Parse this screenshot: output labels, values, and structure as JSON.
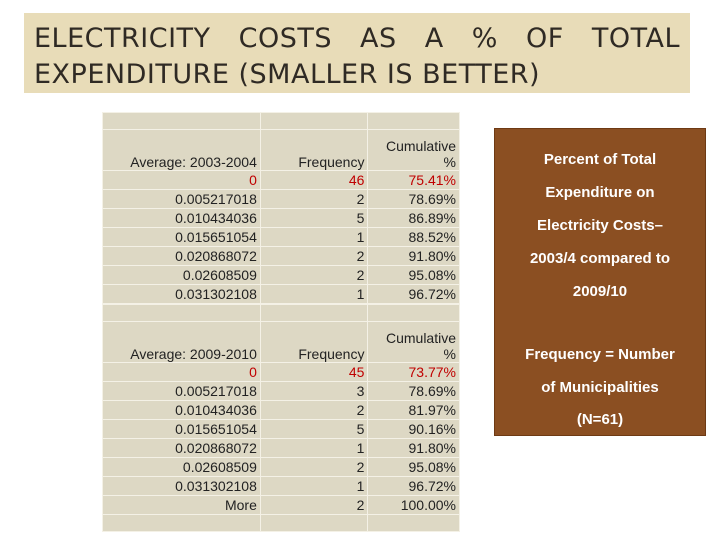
{
  "title": {
    "words_line1": [
      "ELECTRICITY",
      "COSTS",
      "AS",
      "A",
      "%",
      "OF",
      "TOTAL"
    ],
    "line2": "EXPENDITURE (SMALLER IS BETTER)"
  },
  "table1": {
    "label": "Average: 2003-2004",
    "freq_header": "Frequency",
    "cum_header_1": "Cumulative",
    "cum_header_2": "%",
    "rows": [
      {
        "bin": "0",
        "freq": "46",
        "cum": "75.41%"
      },
      {
        "bin": "0.005217018",
        "freq": "2",
        "cum": "78.69%"
      },
      {
        "bin": "0.010434036",
        "freq": "5",
        "cum": "86.89%"
      },
      {
        "bin": "0.015651054",
        "freq": "1",
        "cum": "88.52%"
      },
      {
        "bin": "0.020868072",
        "freq": "2",
        "cum": "91.80%"
      },
      {
        "bin": "0.02608509",
        "freq": "2",
        "cum": "95.08%"
      },
      {
        "bin": "0.031302108",
        "freq": "1",
        "cum": "96.72%"
      },
      {
        "bin": "More",
        "freq": "2",
        "cum": "100.00%"
      }
    ]
  },
  "table2": {
    "label": "Average:  2009-2010",
    "freq_header": "Frequency",
    "cum_header_1": "Cumulative",
    "cum_header_2": "%",
    "rows": [
      {
        "bin": "0",
        "freq": "45",
        "cum": "73.77%"
      },
      {
        "bin": "0.005217018",
        "freq": "3",
        "cum": "78.69%"
      },
      {
        "bin": "0.010434036",
        "freq": "2",
        "cum": "81.97%"
      },
      {
        "bin": "0.015651054",
        "freq": "5",
        "cum": "90.16%"
      },
      {
        "bin": "0.020868072",
        "freq": "1",
        "cum": "91.80%"
      },
      {
        "bin": "0.02608509",
        "freq": "2",
        "cum": "95.08%"
      },
      {
        "bin": "0.031302108",
        "freq": "1",
        "cum": "96.72%"
      },
      {
        "bin": "More",
        "freq": "2",
        "cum": "100.00%"
      }
    ]
  },
  "panel": {
    "lines_1": [
      "Percent of Total",
      "Expenditure on",
      "Electricity Costs–",
      "2003/4 compared to",
      "2009/10"
    ],
    "lines_2": [
      "Frequency = Number",
      "of Municipalities",
      "(N=61)"
    ]
  },
  "colors": {
    "title_bg": "#e8dcb8",
    "table_bg": "#ddd8c4",
    "highlight_red": "#c00000",
    "panel_bg": "#8b4f22",
    "panel_text": "#ffffff"
  }
}
